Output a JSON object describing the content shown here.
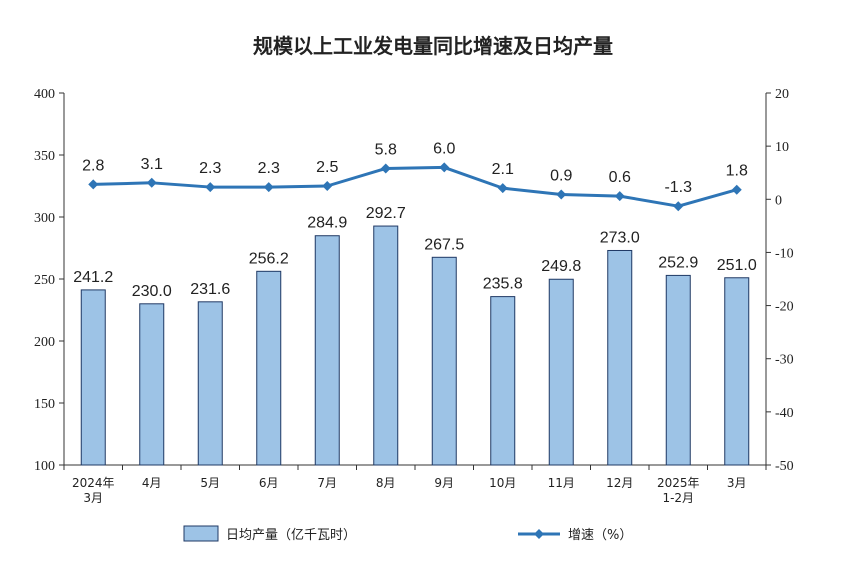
{
  "chart_data": {
    "type": "bar",
    "title": "规模以上工业发电量同比增速及日均产量",
    "categories": [
      [
        "2024年",
        "3月"
      ],
      [
        "4月"
      ],
      [
        "5月"
      ],
      [
        "6月"
      ],
      [
        "7月"
      ],
      [
        "8月"
      ],
      [
        "9月"
      ],
      [
        "10月"
      ],
      [
        "11月"
      ],
      [
        "12月"
      ],
      [
        "2025年",
        "1-2月"
      ],
      [
        "3月"
      ]
    ],
    "series": [
      {
        "name": "日均产量（亿千瓦时）",
        "type": "bar",
        "axis": "left",
        "values": [
          241.2,
          230.0,
          231.6,
          256.2,
          284.9,
          292.7,
          267.5,
          235.8,
          249.8,
          273.0,
          252.9,
          251.0
        ],
        "labels": [
          "241.2",
          "230.0",
          "231.6",
          "256.2",
          "284.9",
          "292.7",
          "267.5",
          "235.8",
          "249.8",
          "273.0",
          "252.9",
          "251.0"
        ],
        "color": "#9DC3E6",
        "border": "#1F3864"
      },
      {
        "name": "增速（%）",
        "type": "line",
        "axis": "right",
        "values": [
          2.8,
          3.1,
          2.3,
          2.3,
          2.5,
          5.8,
          6.0,
          2.1,
          0.9,
          0.6,
          -1.3,
          1.8
        ],
        "labels": [
          "2.8",
          "3.1",
          "2.3",
          "2.3",
          "2.5",
          "5.8",
          "6.0",
          "2.1",
          "0.9",
          "0.6",
          "-1.3",
          "1.8"
        ],
        "color": "#2E75B6"
      }
    ],
    "y_left": {
      "min": 100,
      "max": 400,
      "step": 50,
      "ticks": [
        "100",
        "150",
        "200",
        "250",
        "300",
        "350",
        "400"
      ]
    },
    "y_right": {
      "min": -50,
      "max": 20,
      "step": 10,
      "ticks": [
        "-50",
        "-40",
        "-30",
        "-20",
        "-10",
        "0",
        "10",
        "20"
      ]
    },
    "grid": false,
    "legend": "bottom"
  }
}
